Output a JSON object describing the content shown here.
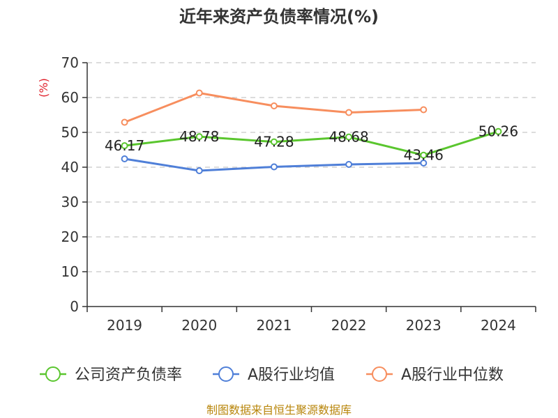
{
  "chart_data": {
    "type": "line",
    "title": "近年来资产负债率情况(%)",
    "ylabel": "(%)",
    "xlabel": "",
    "categories": [
      "2019",
      "2020",
      "2021",
      "2022",
      "2023",
      "2024"
    ],
    "ylim": [
      0,
      70
    ],
    "yticks": [
      "0",
      "10",
      "20",
      "30",
      "40",
      "50",
      "60",
      "70"
    ],
    "grid": true,
    "legend_position": "bottom",
    "series": [
      {
        "name": "公司资产负债率",
        "color": "#5ac62e",
        "values": [
          46.17,
          48.78,
          47.28,
          48.68,
          43.46,
          50.26
        ],
        "data_labels": [
          "46.17",
          "48.78",
          "47.28",
          "48.68",
          "43.46",
          "50.26"
        ]
      },
      {
        "name": "A股行业均值",
        "color": "#4f7fd8",
        "values": [
          42.4,
          39.0,
          40.1,
          40.8,
          41.2,
          null
        ]
      },
      {
        "name": "A股行业中位数",
        "color": "#f78e5e",
        "values": [
          52.9,
          61.3,
          57.6,
          55.7,
          56.5,
          null
        ]
      }
    ]
  },
  "source": "制图数据来自恒生聚源数据库"
}
